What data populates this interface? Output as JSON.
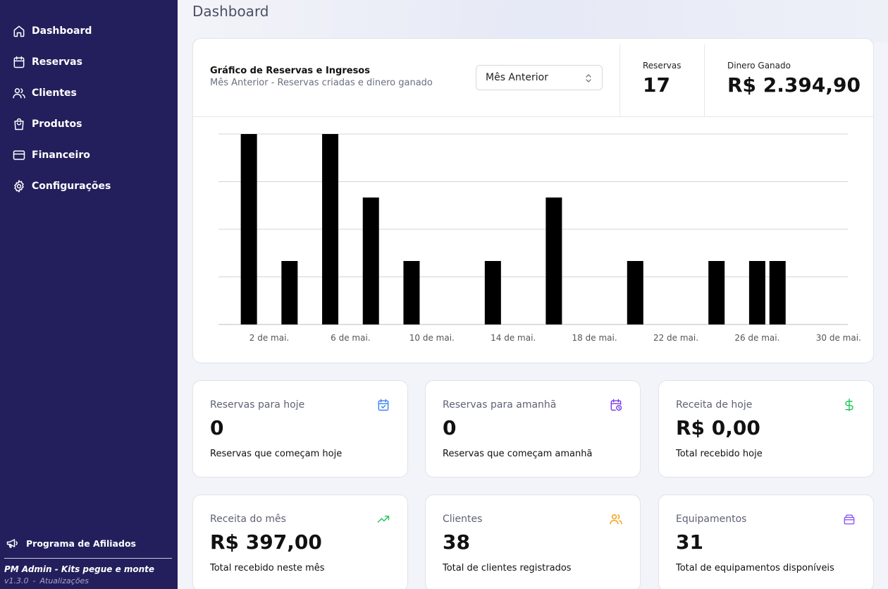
{
  "sidebar": {
    "items": [
      {
        "label": "Dashboard",
        "icon": "home-icon"
      },
      {
        "label": "Reservas",
        "icon": "calendar-icon"
      },
      {
        "label": "Clientes",
        "icon": "users-icon"
      },
      {
        "label": "Produtos",
        "icon": "shopping-bag-icon"
      },
      {
        "label": "Financeiro",
        "icon": "credit-card-icon"
      },
      {
        "label": "Configurações",
        "icon": "gear-icon"
      }
    ],
    "affiliate_label": "Programa de Afiliados",
    "brand": "PM Admin - Kits pegue e monte",
    "version": "v1.3.0",
    "separator": "-",
    "updates_link": "Atualizações"
  },
  "page": {
    "title": "Dashboard"
  },
  "chart_card": {
    "title": "Gráfico de Reservas e Ingresos",
    "subtitle": "Mês Anterior - Reservas criadas e dinero ganado",
    "select_value": "Mês Anterior",
    "stats": [
      {
        "label": "Reservas",
        "value": "17"
      },
      {
        "label": "Dinero Ganado",
        "value": "R$ 2.394,90"
      }
    ]
  },
  "chart_data": {
    "type": "bar",
    "title": "Gráfico de Reservas e Ingresos",
    "x_days": [
      1,
      3,
      5,
      7,
      9,
      13,
      16,
      20,
      24,
      26,
      27
    ],
    "values": [
      3,
      1,
      3,
      2,
      1,
      1,
      2,
      1,
      1,
      1,
      1
    ],
    "xticks": [
      2,
      6,
      10,
      14,
      18,
      22,
      26,
      30
    ],
    "xtick_labels": [
      "2 de mai.",
      "6 de mai.",
      "10 de mai.",
      "14 de mai.",
      "18 de mai.",
      "22 de mai.",
      "26 de mai.",
      "30 de mai."
    ],
    "xlim": [
      0,
      31
    ],
    "ylim": [
      0,
      3
    ],
    "gridlines": [
      0,
      0.75,
      1.5,
      2.25,
      3
    ],
    "bar_color": "#000000",
    "grid": true
  },
  "kpis": [
    {
      "label": "Reservas para hoje",
      "value": "0",
      "desc": "Reservas que começam hoje",
      "icon": "calendar-check-icon",
      "color": "#3b82f6"
    },
    {
      "label": "Reservas para amanhã",
      "value": "0",
      "desc": "Reservas que começam amanhã",
      "icon": "calendar-clock-icon",
      "color": "#7c3aed"
    },
    {
      "label": "Receita de hoje",
      "value": "R$ 0,00",
      "desc": "Total recebido hoje",
      "icon": "dollar-icon",
      "color": "#22c55e"
    },
    {
      "label": "Receita do mês",
      "value": "R$ 397,00",
      "desc": "Total recebido neste mês",
      "icon": "trending-up-icon",
      "color": "#22c55e"
    },
    {
      "label": "Clientes",
      "value": "38",
      "desc": "Total de clientes registrados",
      "icon": "users-icon",
      "color": "#f59e0b"
    },
    {
      "label": "Equipamentos",
      "value": "31",
      "desc": "Total de equipamentos disponíveis",
      "icon": "box-icon",
      "color": "#8b5cf6"
    }
  ]
}
